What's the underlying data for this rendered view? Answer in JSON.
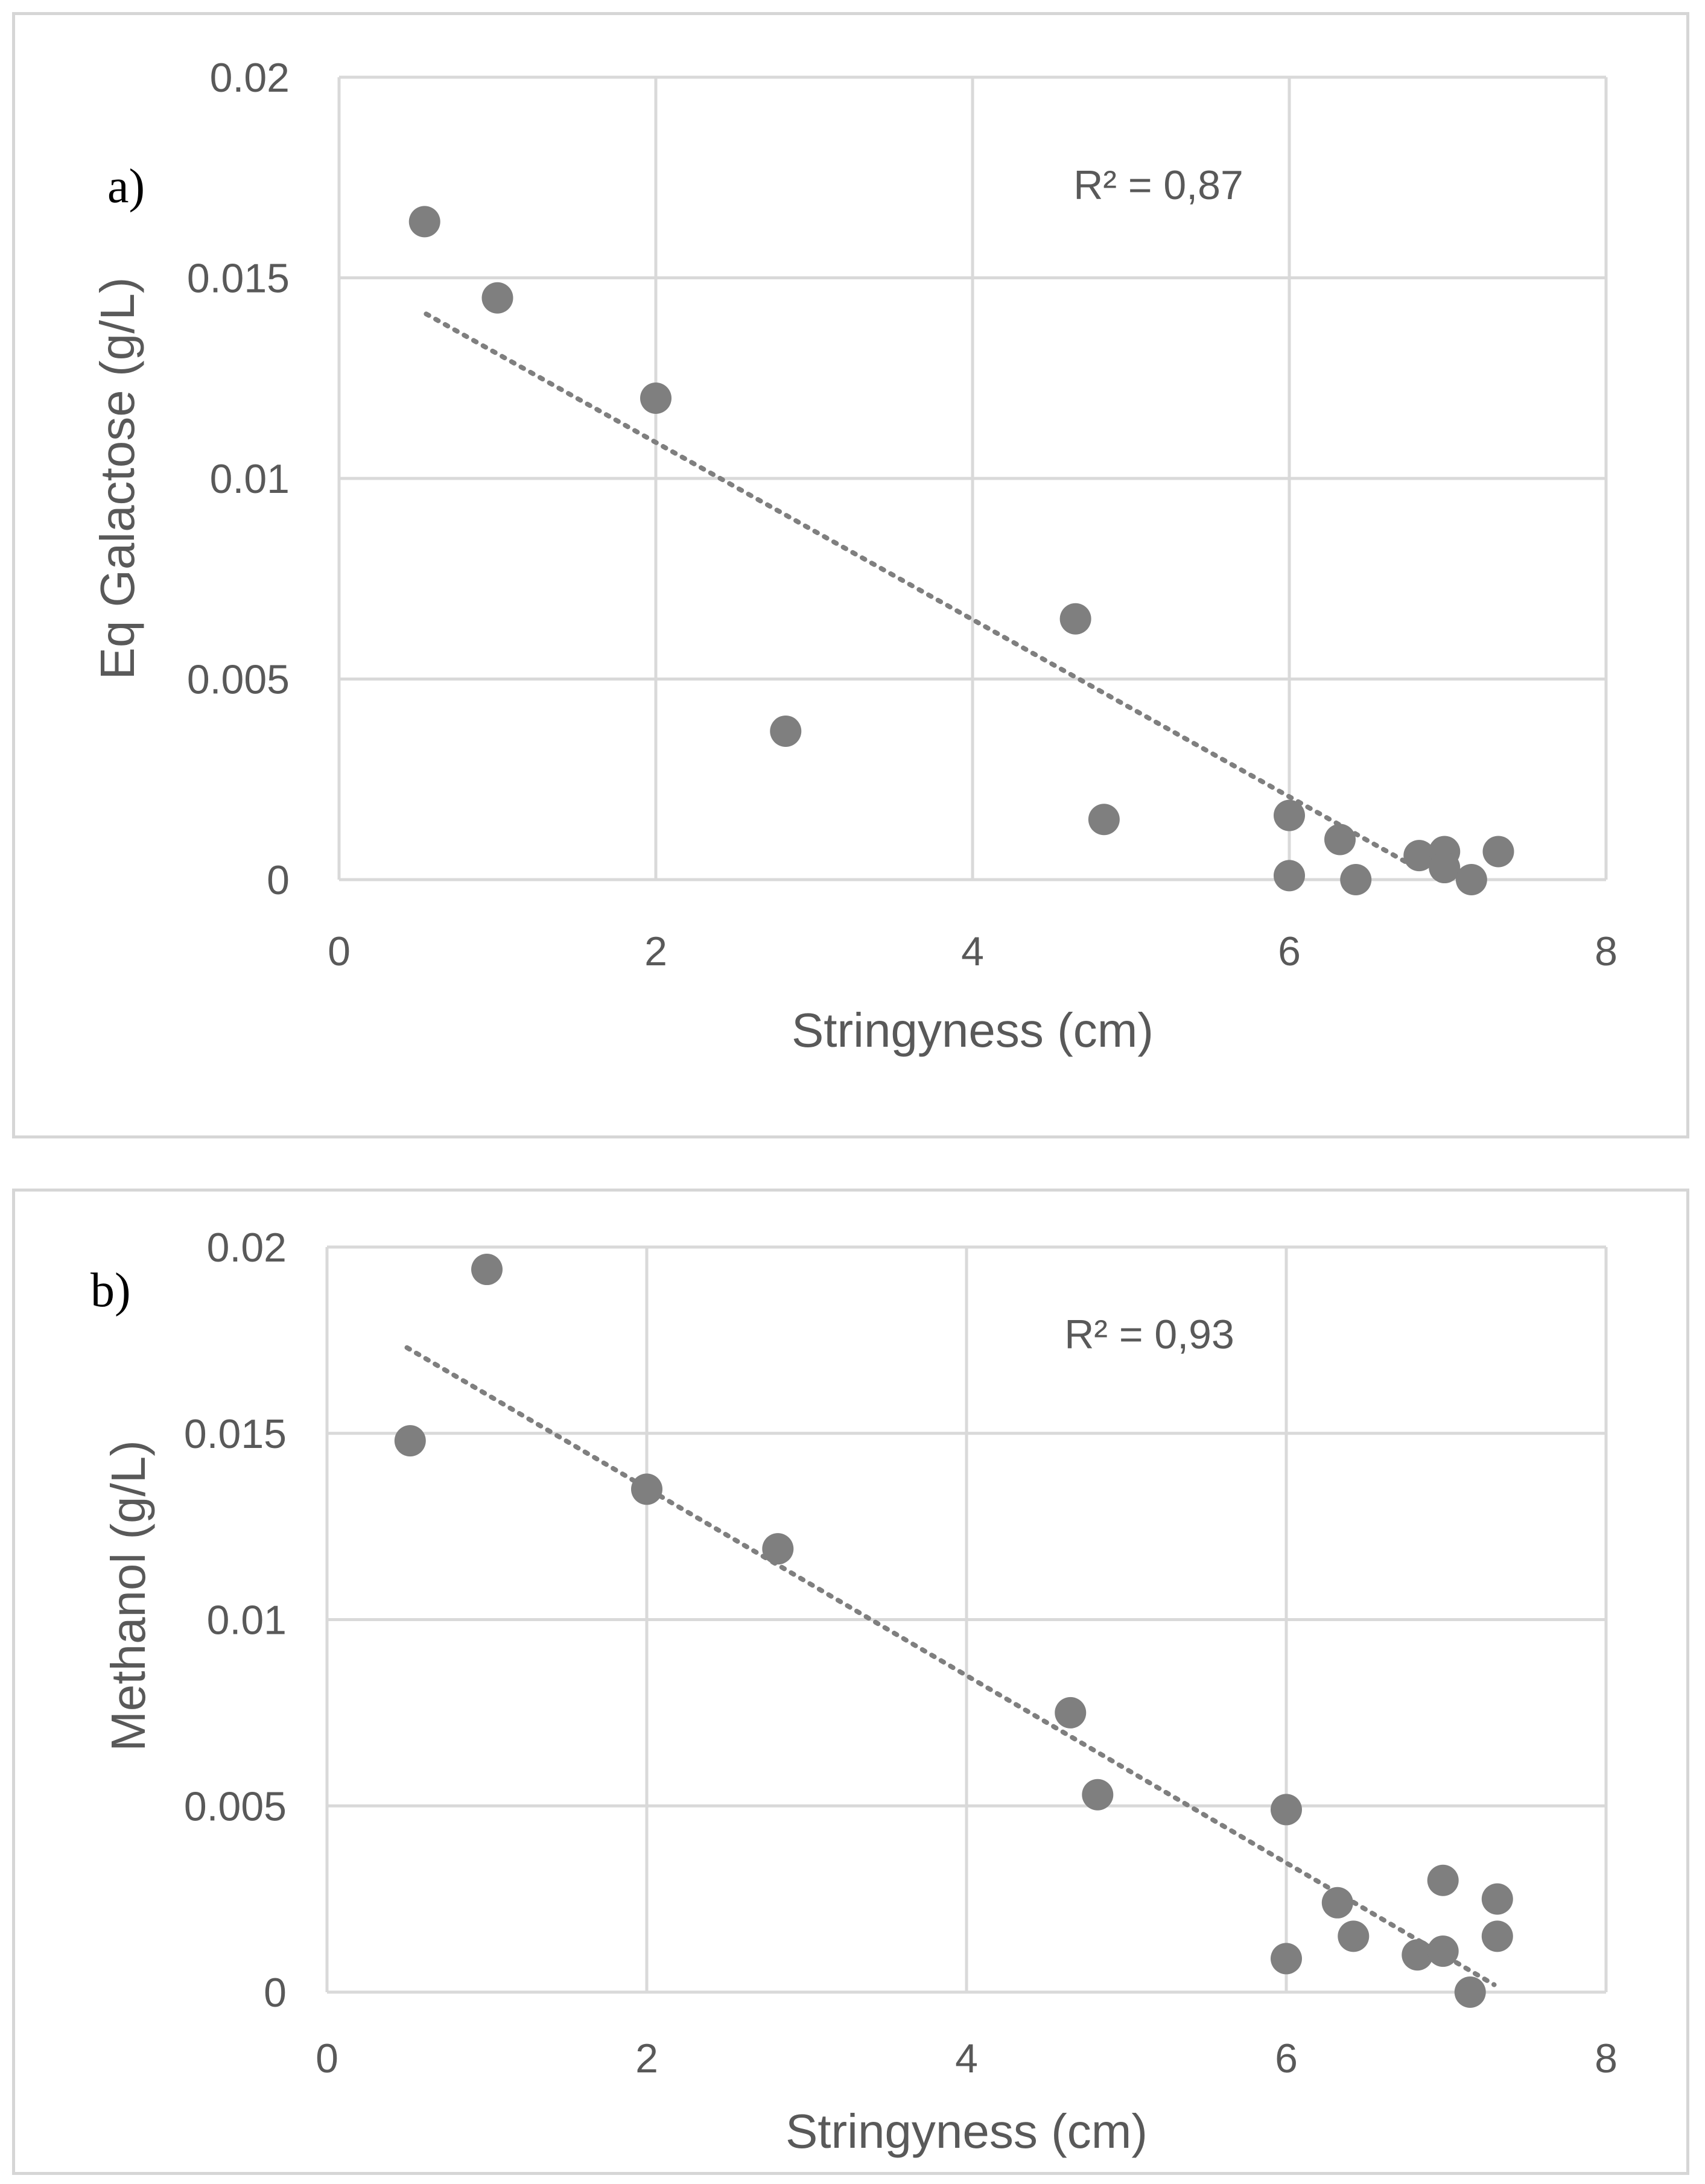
{
  "chart_data": [
    {
      "type": "scatter",
      "panel_label": "a)",
      "xlabel": "Stringyness (cm)",
      "ylabel": "Eq Galactose (g/L)",
      "xlim": [
        0,
        8
      ],
      "ylim": [
        0,
        0.02
      ],
      "x_ticks": [
        "0",
        "2",
        "4",
        "6",
        "8"
      ],
      "y_ticks": [
        "0",
        "0.005",
        "0.01",
        "0.015",
        "0.02"
      ],
      "r2_label": "R² = 0,87",
      "trendline": {
        "x": [
          0.55,
          6.8
        ],
        "y": [
          0.0141,
          0.0003
        ]
      },
      "series": [
        {
          "name": "Eq Galactose",
          "x": [
            0.54,
            1.0,
            2.0,
            2.82,
            4.65,
            4.83,
            6.0,
            6.0,
            6.32,
            6.42,
            6.82,
            6.98,
            6.98,
            7.15,
            7.32
          ],
          "y": [
            0.0164,
            0.0145,
            0.012,
            0.0037,
            0.0065,
            0.0015,
            0.0016,
            0.0001,
            0.001,
            0.0,
            0.0006,
            0.0007,
            0.0003,
            0.0,
            0.0007
          ]
        }
      ]
    },
    {
      "type": "scatter",
      "panel_label": "b)",
      "xlabel": "Stringyness (cm)",
      "ylabel": "Methanol (g/L)",
      "xlim": [
        0,
        8
      ],
      "ylim": [
        0,
        0.02
      ],
      "x_ticks": [
        "0",
        "2",
        "4",
        "6",
        "8"
      ],
      "y_ticks": [
        "0",
        "0.005",
        "0.01",
        "0.015",
        "0.02"
      ],
      "r2_label": "R² = 0,93",
      "trendline": {
        "x": [
          0.5,
          7.3
        ],
        "y": [
          0.0173,
          0.0002
        ]
      },
      "series": [
        {
          "name": "Methanol",
          "x": [
            0.52,
            1.0,
            2.0,
            2.82,
            4.65,
            4.82,
            6.0,
            6.0,
            6.32,
            6.42,
            6.82,
            6.98,
            6.98,
            7.15,
            7.32,
            7.32
          ],
          "y": [
            0.0148,
            0.0194,
            0.0135,
            0.0119,
            0.0075,
            0.0053,
            0.0049,
            0.0009,
            0.0024,
            0.0015,
            0.001,
            0.003,
            0.0011,
            0.0,
            0.0025,
            0.0015
          ]
        }
      ]
    }
  ]
}
